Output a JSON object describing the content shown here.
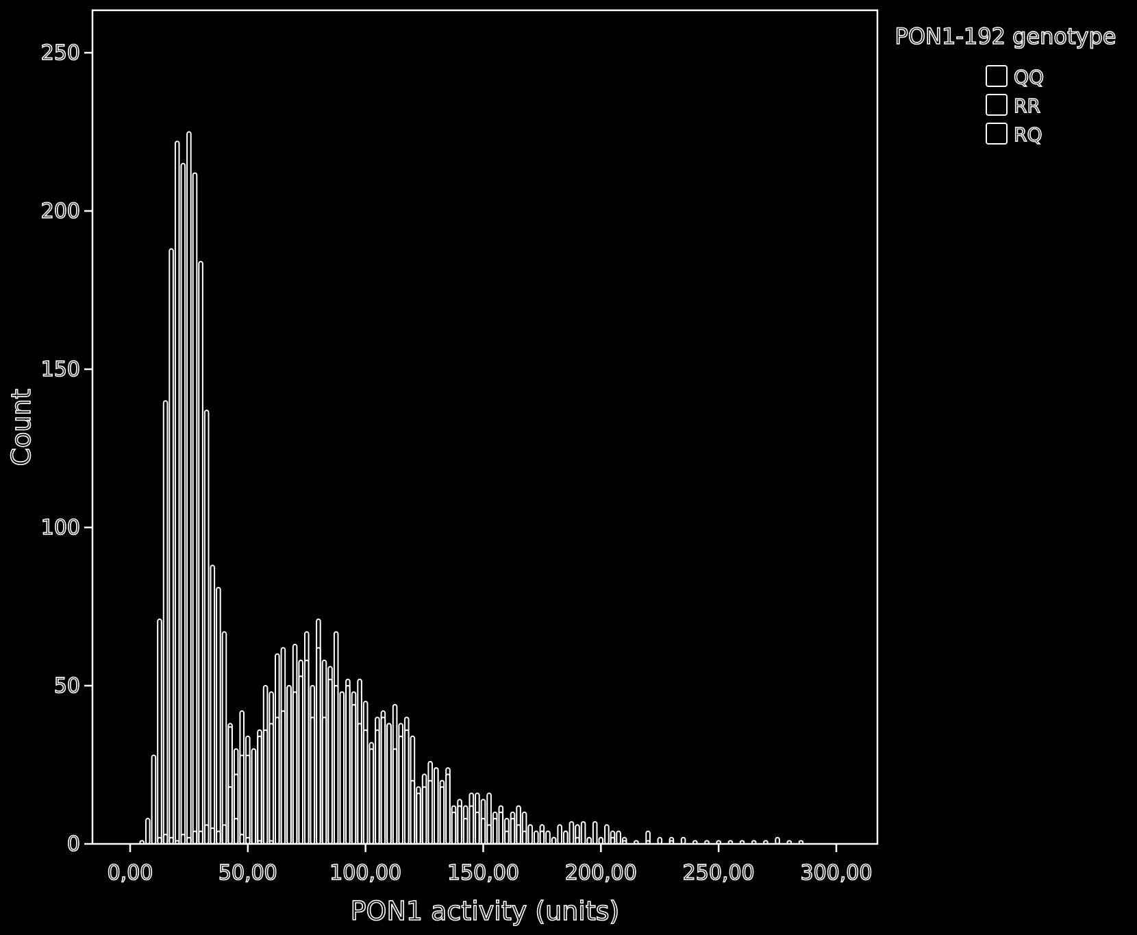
{
  "chart_data": {
    "type": "bar",
    "subtype": "overlapping histogram",
    "xlabel": "PON1 activity (units)",
    "ylabel": "Count",
    "xlim": [
      -10,
      312
    ],
    "ylim": [
      0,
      250
    ],
    "x_ticks": [
      {
        "value": 0,
        "label": "0,00"
      },
      {
        "value": 50,
        "label": "50,00"
      },
      {
        "value": 100,
        "label": "100,00"
      },
      {
        "value": 150,
        "label": "150,00"
      },
      {
        "value": 200,
        "label": "200,00"
      },
      {
        "value": 250,
        "label": "250,00"
      },
      {
        "value": 300,
        "label": "300,00"
      }
    ],
    "y_ticks": [
      {
        "value": 0,
        "label": "0"
      },
      {
        "value": 50,
        "label": "50"
      },
      {
        "value": 100,
        "label": "100"
      },
      {
        "value": 150,
        "label": "150"
      },
      {
        "value": 200,
        "label": "200"
      },
      {
        "value": 250,
        "label": "250"
      }
    ],
    "bin_width": 2.5,
    "legend": {
      "title": "PON1-192 genotype",
      "position": "right",
      "entries": [
        "QQ",
        "RR",
        "RQ"
      ]
    },
    "series": [
      {
        "name": "QQ",
        "x": [
          5,
          7.5,
          10,
          12.5,
          15,
          17.5,
          20,
          22.5,
          25,
          27.5,
          30,
          32.5,
          35,
          37.5,
          40,
          42.5,
          45,
          47.5,
          50,
          55,
          60
        ],
        "values": [
          1,
          8,
          28,
          71,
          140,
          188,
          222,
          215,
          225,
          212,
          184,
          137,
          88,
          81,
          67,
          37,
          8,
          3,
          2,
          1,
          1
        ]
      },
      {
        "name": "RR",
        "x": [
          42.5,
          45,
          47.5,
          50,
          52.5,
          55,
          57.5,
          60,
          62.5,
          65,
          67.5,
          70,
          72.5,
          75,
          77.5,
          80,
          82.5,
          85,
          87.5,
          90,
          92.5,
          95,
          97.5,
          100,
          102.5,
          105,
          107.5,
          110,
          112.5,
          115,
          117.5,
          120,
          122.5,
          125,
          127.5,
          130,
          132.5,
          135,
          137.5,
          140,
          142.5,
          145,
          147.5,
          150,
          152.5,
          155,
          157.5,
          160,
          162.5,
          165,
          167.5,
          170,
          172.5,
          175,
          177.5,
          180,
          182.5,
          185,
          187.5,
          190,
          192.5,
          195,
          197.5,
          200,
          202.5,
          205,
          207.5,
          210,
          215,
          220,
          225,
          230,
          235,
          240,
          245,
          250,
          255,
          260,
          265,
          270,
          275,
          280,
          285
        ],
        "values": [
          38,
          30,
          42,
          28,
          30,
          36,
          50,
          48,
          60,
          62,
          50,
          63,
          58,
          67,
          50,
          71,
          58,
          52,
          67,
          48,
          52,
          48,
          52,
          45,
          32,
          40,
          42,
          38,
          44,
          34,
          40,
          20,
          18,
          22,
          26,
          24,
          20,
          24,
          12,
          14,
          12,
          16,
          16,
          8,
          16,
          8,
          12,
          8,
          10,
          12,
          10,
          6,
          4,
          6,
          4,
          2,
          6,
          4,
          7,
          6,
          7,
          2,
          7,
          2,
          6,
          4,
          4,
          2,
          1,
          4,
          2,
          2,
          2,
          1,
          1,
          1,
          1,
          1,
          1,
          1,
          2,
          1,
          1
        ]
      },
      {
        "name": "RQ",
        "x": [
          12.5,
          15,
          17.5,
          20,
          22.5,
          25,
          27.5,
          30,
          32.5,
          35,
          37.5,
          40,
          42.5,
          45,
          47.5,
          50,
          52.5,
          55,
          57.5,
          60,
          62.5,
          65,
          67.5,
          70,
          72.5,
          75,
          77.5,
          80,
          82.5,
          85,
          87.5,
          90,
          92.5,
          95,
          97.5,
          100,
          102.5,
          105,
          107.5,
          110,
          112.5,
          115,
          117.5,
          120,
          122.5,
          125,
          127.5,
          130,
          132.5,
          135,
          137.5,
          140,
          142.5,
          145,
          147.5,
          150,
          152.5,
          155,
          157.5,
          160,
          162.5,
          165,
          167.5,
          170,
          175,
          180,
          185,
          190,
          195,
          200,
          205,
          210,
          220,
          230
        ],
        "values": [
          2,
          3,
          2,
          1,
          3,
          2,
          4,
          4,
          6,
          5,
          4,
          6,
          18,
          22,
          28,
          34,
          30,
          34,
          36,
          38,
          40,
          42,
          50,
          48,
          53,
          58,
          40,
          62,
          40,
          56,
          50,
          48,
          50,
          44,
          38,
          36,
          30,
          36,
          40,
          38,
          30,
          38,
          36,
          34,
          16,
          18,
          20,
          24,
          18,
          22,
          10,
          12,
          8,
          12,
          10,
          14,
          6,
          10,
          10,
          4,
          8,
          6,
          4,
          6,
          4,
          2,
          4,
          2,
          2,
          2,
          2,
          1,
          1,
          1
        ]
      }
    ]
  }
}
